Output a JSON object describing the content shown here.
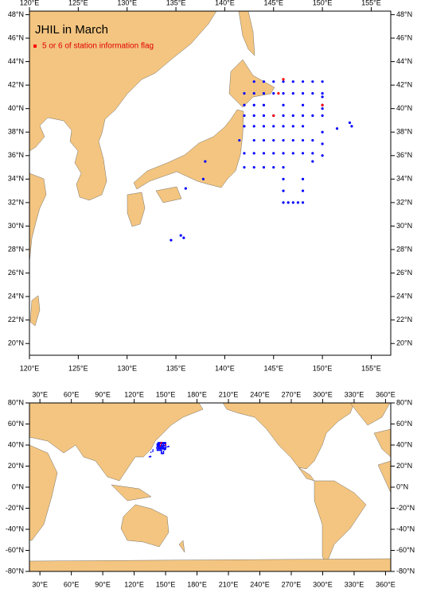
{
  "title": "JHIL in March",
  "legend": {
    "label": "5 or 6 of station information flag",
    "color": "#ff0000"
  },
  "top_map": {
    "lonlim": [
      120,
      157
    ],
    "latlim": [
      19,
      48.3
    ],
    "lonticks": [
      {
        "value": 120,
        "label": "120°E"
      },
      {
        "value": 125,
        "label": "125°E"
      },
      {
        "value": 130,
        "label": "130°E"
      },
      {
        "value": 135,
        "label": "135°E"
      },
      {
        "value": 140,
        "label": "140°E"
      },
      {
        "value": 145,
        "label": "145°E"
      },
      {
        "value": 150,
        "label": "150°E"
      },
      {
        "value": 155,
        "label": "155°E"
      }
    ],
    "latticks": [
      {
        "value": 20,
        "label": "20°N"
      },
      {
        "value": 22,
        "label": "22°N"
      },
      {
        "value": 24,
        "label": "24°N"
      },
      {
        "value": 26,
        "label": "26°N"
      },
      {
        "value": 28,
        "label": "28°N"
      },
      {
        "value": 30,
        "label": "30°N"
      },
      {
        "value": 32,
        "label": "32°N"
      },
      {
        "value": 34,
        "label": "34°N"
      },
      {
        "value": 36,
        "label": "36°N"
      },
      {
        "value": 38,
        "label": "38°N"
      },
      {
        "value": 40,
        "label": "40°N"
      },
      {
        "value": 42,
        "label": "42°N"
      },
      {
        "value": 44,
        "label": "44°N"
      },
      {
        "value": 46,
        "label": "46°N"
      },
      {
        "value": 48,
        "label": "48°N"
      }
    ]
  },
  "bottom_map": {
    "lonlim": [
      20,
      365
    ],
    "latlim": [
      -80,
      80
    ],
    "lonticks": [
      {
        "value": 30,
        "label": "30°E"
      },
      {
        "value": 60,
        "label": "60°E"
      },
      {
        "value": 90,
        "label": "90°E"
      },
      {
        "value": 120,
        "label": "120°E"
      },
      {
        "value": 150,
        "label": "150°E"
      },
      {
        "value": 180,
        "label": "180°E"
      },
      {
        "value": 210,
        "label": "210°E"
      },
      {
        "value": 240,
        "label": "240°E"
      },
      {
        "value": 270,
        "label": "270°E"
      },
      {
        "value": 300,
        "label": "300°E"
      },
      {
        "value": 330,
        "label": "330°E"
      },
      {
        "value": 360,
        "label": "360°E"
      }
    ],
    "latticks": [
      {
        "value": -80,
        "label": "-80°N"
      },
      {
        "value": -60,
        "label": "-60°N"
      },
      {
        "value": -40,
        "label": "-40°N"
      },
      {
        "value": -20,
        "label": "-20°N"
      },
      {
        "value": 0,
        "label": "0°N"
      },
      {
        "value": 20,
        "label": "20°N"
      },
      {
        "value": 40,
        "label": "40°N"
      },
      {
        "value": 60,
        "label": "60°N"
      },
      {
        "value": 80,
        "label": "80°N"
      }
    ]
  },
  "stations": {
    "color": "#0000ff",
    "lon": [
      143,
      144,
      145,
      146,
      147,
      148,
      149,
      150,
      142,
      143,
      144,
      145,
      146,
      147,
      148,
      149,
      150,
      142,
      143,
      144,
      146,
      148,
      150,
      142,
      143,
      144,
      145,
      146,
      147,
      148,
      149,
      150,
      142,
      143,
      144,
      145,
      146,
      147,
      148,
      141.5,
      143,
      144,
      145,
      146,
      147,
      148,
      149,
      142,
      143,
      144,
      145,
      146,
      147,
      148,
      149,
      142,
      143,
      144,
      145,
      146,
      148,
      148,
      148,
      146,
      146,
      146,
      146.5,
      147,
      147.5,
      150,
      150,
      150,
      150,
      150,
      149,
      152.8,
      153,
      151.5,
      136,
      137.8,
      138,
      135.5,
      135.8,
      134.5
    ],
    "lat": [
      42.3,
      42.3,
      42.3,
      42.3,
      42.3,
      42.3,
      42.3,
      42.3,
      41.3,
      41.3,
      41.3,
      41.3,
      41.3,
      41.3,
      41.3,
      41.3,
      41.3,
      40.3,
      40.3,
      40.3,
      40.3,
      40.3,
      40.3,
      39.4,
      39.4,
      39.4,
      39.4,
      39.4,
      39.4,
      39.4,
      39.4,
      39.4,
      38.5,
      38.5,
      38.5,
      38.5,
      38.5,
      38.5,
      38.5,
      37.3,
      37.3,
      37.3,
      37.3,
      37.3,
      37.3,
      37.3,
      37.3,
      36.2,
      36.2,
      36.2,
      36.2,
      36.2,
      36.2,
      36.2,
      36.2,
      35,
      35,
      35,
      35,
      35,
      34,
      33,
      32,
      34,
      33,
      32,
      32,
      32,
      32,
      41,
      40,
      38,
      37,
      36,
      35.5,
      38.8,
      38.5,
      38.3,
      33.2,
      34,
      35.5,
      29.2,
      29,
      28.8
    ]
  },
  "flagged": {
    "color": "#ff0000",
    "lon": [
      145,
      146,
      150,
      145.5
    ],
    "lat": [
      39.4,
      42.5,
      40.3,
      41.3
    ]
  }
}
